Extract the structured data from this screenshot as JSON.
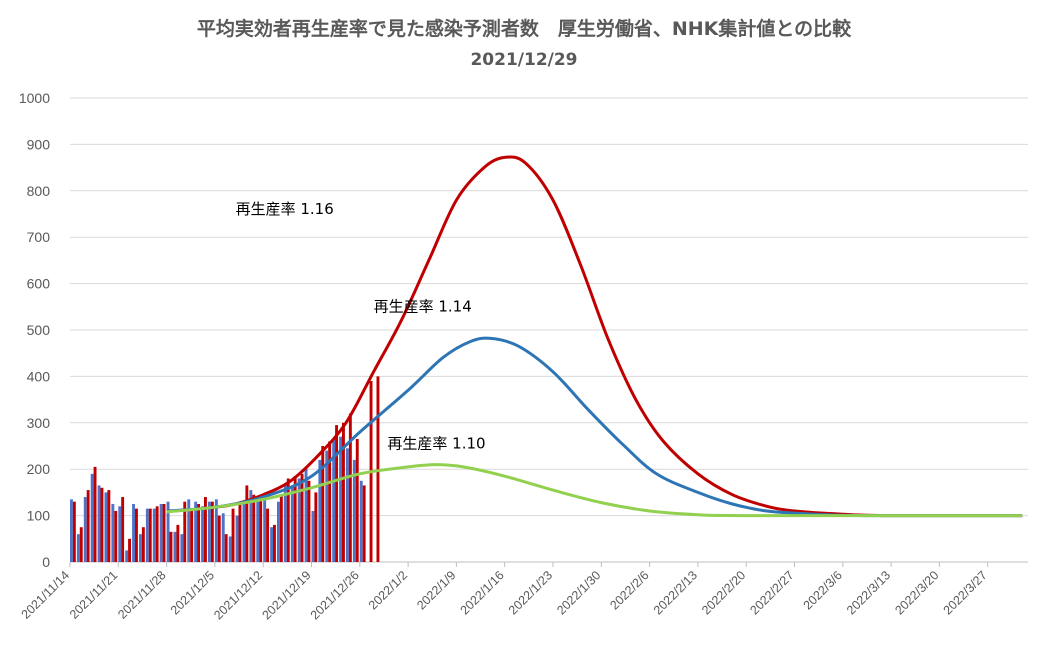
{
  "chart_data": {
    "type": "bar+line",
    "title": "平均実効者再生産率で見た感染予測者数　厚生労働省、NHK集計値との比較",
    "subtitle": "2021/12/29",
    "ylim": [
      0,
      1000
    ],
    "yticks": [
      "0",
      "100",
      "200",
      "300",
      "400",
      "500",
      "600",
      "700",
      "800",
      "900",
      "1000"
    ],
    "xticks": [
      "2021/11/14",
      "2021/11/21",
      "2021/11/28",
      "2021/12/5",
      "2021/12/12",
      "2021/12/19",
      "2021/12/26",
      "2022/1/2",
      "2022/1/9",
      "2022/1/16",
      "2022/1/23",
      "2022/1/30",
      "2022/2/6",
      "2022/2/13",
      "2022/2/20",
      "2022/2/27",
      "2022/3/6",
      "2022/3/13",
      "2022/3/20",
      "2022/3/27"
    ],
    "grid": true,
    "bar_start_date": "2021/11/14",
    "bar_series": [
      {
        "color": "#4f73c6",
        "values": [
          135,
          60,
          140,
          190,
          165,
          150,
          125,
          120,
          25,
          125,
          60,
          115,
          115,
          125,
          130,
          65,
          60,
          135,
          130,
          120,
          130,
          135,
          105,
          55,
          100,
          125,
          155,
          140,
          135,
          75,
          130,
          165,
          165,
          180,
          205,
          110,
          220,
          240,
          265,
          270,
          245,
          220,
          175
        ]
      },
      {
        "color": "#c00000",
        "values": [
          130,
          75,
          155,
          205,
          160,
          155,
          110,
          140,
          50,
          115,
          75,
          115,
          120,
          125,
          65,
          80,
          130,
          115,
          125,
          140,
          130,
          100,
          60,
          115,
          125,
          165,
          145,
          140,
          115,
          80,
          145,
          180,
          185,
          190,
          175,
          150,
          250,
          260,
          295,
          300,
          320,
          265,
          165,
          390,
          400
        ]
      }
    ],
    "line_series": [
      {
        "label": "再生産率  1.16",
        "color": "#c00000",
        "points": [
          [
            "2021/12/5",
            118
          ],
          [
            "2021/12/8",
            125
          ],
          [
            "2021/12/12",
            145
          ],
          [
            "2021/12/16",
            175
          ],
          [
            "2021/12/20",
            230
          ],
          [
            "2021/12/24",
            300
          ],
          [
            "2021/12/28",
            410
          ],
          [
            "2022/1/1",
            520
          ],
          [
            "2022/1/5",
            650
          ],
          [
            "2022/1/9",
            780
          ],
          [
            "2022/1/13",
            850
          ],
          [
            "2022/1/16",
            872
          ],
          [
            "2022/1/19",
            860
          ],
          [
            "2022/1/23",
            780
          ],
          [
            "2022/1/27",
            640
          ],
          [
            "2022/1/31",
            480
          ],
          [
            "2022/2/4",
            350
          ],
          [
            "2022/2/8",
            260
          ],
          [
            "2022/2/13",
            190
          ],
          [
            "2022/2/18",
            145
          ],
          [
            "2022/2/23",
            120
          ],
          [
            "2022/2/27",
            110
          ],
          [
            "2022/3/6",
            103
          ],
          [
            "2022/3/13",
            100
          ],
          [
            "2022/4/1",
            100
          ]
        ]
      },
      {
        "label": "再生産率  1.14",
        "color": "#2e75b6",
        "points": [
          [
            "2021/11/28",
            110
          ],
          [
            "2021/12/5",
            118
          ],
          [
            "2021/12/12",
            140
          ],
          [
            "2021/12/19",
            185
          ],
          [
            "2021/12/26",
            280
          ],
          [
            "2022/1/2",
            370
          ],
          [
            "2022/1/7",
            440
          ],
          [
            "2022/1/11",
            475
          ],
          [
            "2022/1/14",
            482
          ],
          [
            "2022/1/18",
            465
          ],
          [
            "2022/1/23",
            410
          ],
          [
            "2022/1/28",
            330
          ],
          [
            "2022/2/2",
            255
          ],
          [
            "2022/2/7",
            190
          ],
          [
            "2022/2/13",
            150
          ],
          [
            "2022/2/18",
            125
          ],
          [
            "2022/2/23",
            110
          ],
          [
            "2022/3/2",
            103
          ],
          [
            "2022/3/9",
            100
          ],
          [
            "2022/4/1",
            100
          ]
        ]
      },
      {
        "label": "再生産率  1.10",
        "color": "#92d050",
        "points": [
          [
            "2021/11/28",
            108
          ],
          [
            "2021/12/5",
            118
          ],
          [
            "2021/12/12",
            135
          ],
          [
            "2021/12/19",
            160
          ],
          [
            "2021/12/26",
            190
          ],
          [
            "2022/1/2",
            205
          ],
          [
            "2022/1/6",
            210
          ],
          [
            "2022/1/10",
            205
          ],
          [
            "2022/1/16",
            185
          ],
          [
            "2022/1/23",
            155
          ],
          [
            "2022/1/30",
            128
          ],
          [
            "2022/2/6",
            110
          ],
          [
            "2022/2/13",
            102
          ],
          [
            "2022/2/20",
            100
          ],
          [
            "2022/4/1",
            100
          ]
        ]
      }
    ],
    "annotations": [
      {
        "text": "再生産率  1.16",
        "x": "2021/12/8",
        "y": 750
      },
      {
        "text": "再生産率  1.14",
        "x": "2021/12/28",
        "y": 540
      },
      {
        "text": "再生産率  1.10",
        "x": "2021/12/30",
        "y": 245
      }
    ]
  }
}
